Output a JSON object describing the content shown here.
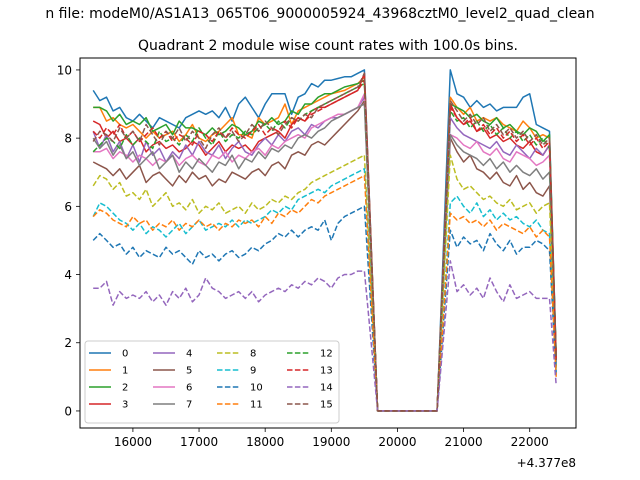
{
  "figure_title": "n file: modeM0/AS1A13_065T06_9000005924_43968cztM0_level2_quad_clean",
  "chart_data": {
    "type": "line",
    "title": "Quadrant 2 module wise count rates with 100.0s bins.",
    "xlabel": "",
    "ylabel": "",
    "x_offset_label": "+4.377e8",
    "xlim": [
      15200,
      22700
    ],
    "ylim": [
      -0.5,
      10.35
    ],
    "x_ticks": [
      16000,
      17000,
      18000,
      19000,
      20000,
      21000,
      22000
    ],
    "y_ticks": [
      0,
      2,
      4,
      6,
      8,
      10
    ],
    "grid": false,
    "legend_position": "lower-left",
    "legend_columns": 4,
    "segments": [
      {
        "x_start": 15400,
        "x_end": 19500,
        "step": 100
      },
      {
        "x_start": 19700,
        "x_end": 20600,
        "step": 100
      },
      {
        "x_start": 20800,
        "x_end": 22400,
        "step": 100
      }
    ],
    "series": [
      {
        "name": "0",
        "color": "#1f77b4",
        "dash": "solid",
        "seg1": [
          9.4,
          9.1,
          9.2,
          8.8,
          8.9,
          8.6,
          8.5,
          8.7,
          8.5,
          8.3,
          8.6,
          8.5,
          8.4,
          8.3,
          8.6,
          8.7,
          8.8,
          8.7,
          8.8,
          8.6,
          8.9,
          8.5,
          9.0,
          9.2,
          8.9,
          8.6,
          9.0,
          9.3,
          9.3,
          9.3,
          8.7,
          9.2,
          9.3,
          9.6,
          9.5,
          9.7,
          9.7,
          9.75,
          9.8,
          9.8,
          9.9,
          10.0
        ],
        "seg3": [
          10.0,
          9.3,
          9.2,
          8.9,
          9.1,
          8.9,
          9.0,
          8.8,
          8.9,
          8.9,
          8.9,
          9.2,
          9.3,
          8.4,
          8.3,
          8.2,
          1.6
        ]
      },
      {
        "name": "1",
        "color": "#ff7f0e",
        "dash": "solid",
        "seg1": [
          8.9,
          8.9,
          8.5,
          8.6,
          8.4,
          8.3,
          8.4,
          8.2,
          8.0,
          8.2,
          8.0,
          8.1,
          8.2,
          7.9,
          8.1,
          8.4,
          8.0,
          7.9,
          8.1,
          8.2,
          8.4,
          8.6,
          8.1,
          8.1,
          8.0,
          8.6,
          8.4,
          8.5,
          8.6,
          9.0,
          8.4,
          8.8,
          8.9,
          9.0,
          9.1,
          9.2,
          9.3,
          9.35,
          9.4,
          9.5,
          9.6,
          9.8
        ],
        "seg3": [
          9.2,
          8.9,
          8.7,
          8.9,
          8.5,
          8.6,
          8.5,
          8.6,
          8.4,
          8.3,
          8.2,
          8.5,
          8.3,
          8.0,
          8.1,
          8.0,
          1.5
        ]
      },
      {
        "name": "2",
        "color": "#2ca02c",
        "dash": "solid",
        "seg1": [
          8.9,
          8.9,
          8.8,
          8.5,
          8.7,
          8.4,
          8.5,
          8.4,
          8.6,
          8.2,
          8.3,
          8.4,
          8.1,
          8.5,
          8.3,
          8.3,
          8.2,
          8.1,
          8.3,
          8.1,
          8.2,
          8.4,
          8.3,
          8.1,
          8.2,
          8.5,
          8.4,
          8.6,
          8.4,
          8.5,
          8.8,
          8.7,
          9.0,
          9.0,
          9.2,
          9.3,
          9.3,
          9.4,
          9.5,
          9.55,
          9.6,
          9.7
        ],
        "seg3": [
          9.0,
          8.9,
          8.8,
          8.6,
          8.7,
          8.5,
          8.4,
          8.6,
          8.3,
          8.4,
          8.2,
          8.1,
          8.3,
          8.2,
          7.9,
          8.1,
          1.6
        ]
      },
      {
        "name": "3",
        "color": "#d62728",
        "dash": "solid",
        "seg1": [
          8.5,
          8.4,
          8.0,
          8.2,
          7.9,
          8.0,
          7.8,
          8.0,
          7.6,
          7.8,
          7.9,
          7.7,
          7.8,
          7.6,
          7.7,
          7.9,
          7.8,
          7.5,
          7.7,
          7.9,
          7.6,
          7.8,
          7.7,
          7.8,
          7.6,
          7.9,
          8.0,
          8.1,
          8.2,
          8.0,
          8.4,
          8.6,
          8.5,
          8.8,
          8.9,
          8.9,
          9.0,
          9.1,
          9.2,
          9.3,
          9.4,
          9.9
        ],
        "seg3": [
          9.0,
          8.6,
          8.4,
          8.5,
          8.2,
          8.3,
          8.0,
          8.1,
          7.9,
          8.0,
          7.8,
          7.7,
          7.9,
          7.6,
          7.5,
          7.8,
          1.5
        ]
      },
      {
        "name": "4",
        "color": "#9467bd",
        "dash": "solid",
        "seg1": [
          8.2,
          7.7,
          8.1,
          7.6,
          7.9,
          7.4,
          7.8,
          7.3,
          7.9,
          7.5,
          7.7,
          7.3,
          7.6,
          7.4,
          7.8,
          7.5,
          7.9,
          7.6,
          7.5,
          7.8,
          7.4,
          7.7,
          7.9,
          7.6,
          7.5,
          7.8,
          8.0,
          7.8,
          8.1,
          7.9,
          8.2,
          8.3,
          8.1,
          8.4,
          8.3,
          8.5,
          8.6,
          8.6,
          8.7,
          8.8,
          8.9,
          9.2
        ],
        "seg3": [
          8.6,
          8.3,
          8.1,
          8.0,
          7.9,
          7.8,
          7.7,
          7.9,
          7.6,
          7.5,
          7.8,
          7.6,
          7.4,
          7.7,
          7.5,
          7.8,
          1.4
        ]
      },
      {
        "name": "5",
        "color": "#8c564b",
        "dash": "solid",
        "seg1": [
          7.3,
          7.2,
          7.1,
          6.9,
          7.1,
          6.8,
          7.0,
          7.2,
          6.7,
          6.9,
          7.0,
          6.8,
          6.6,
          6.9,
          6.7,
          7.0,
          6.8,
          6.9,
          6.6,
          6.8,
          6.7,
          7.0,
          6.9,
          6.8,
          7.0,
          7.1,
          6.9,
          7.2,
          7.3,
          7.1,
          7.5,
          7.6,
          7.5,
          7.8,
          7.9,
          7.8,
          8.0,
          8.2,
          8.4,
          8.6,
          8.8,
          9.1
        ],
        "seg3": [
          8.0,
          7.6,
          7.3,
          7.5,
          7.1,
          7.0,
          6.8,
          7.0,
          6.7,
          6.6,
          6.9,
          6.5,
          6.7,
          6.4,
          6.3,
          6.6,
          1.3
        ]
      },
      {
        "name": "6",
        "color": "#e377c2",
        "dash": "solid",
        "seg1": [
          7.6,
          7.6,
          7.7,
          7.4,
          7.6,
          7.5,
          7.3,
          7.5,
          7.4,
          7.2,
          7.4,
          7.3,
          7.5,
          7.2,
          7.4,
          7.5,
          7.3,
          7.2,
          7.5,
          7.4,
          7.6,
          7.3,
          7.5,
          7.4,
          7.6,
          7.7,
          7.5,
          7.8,
          7.7,
          7.9,
          8.0,
          8.1,
          8.0,
          8.3,
          8.4,
          8.5,
          8.6,
          8.7,
          8.7,
          8.8,
          8.9,
          9.3
        ],
        "seg3": [
          8.1,
          8.0,
          7.8,
          7.7,
          7.9,
          7.6,
          7.5,
          7.7,
          7.4,
          7.3,
          7.6,
          7.5,
          7.4,
          7.2,
          7.3,
          7.5,
          1.4
        ]
      },
      {
        "name": "7",
        "color": "#7f7f7f",
        "dash": "solid",
        "seg1": [
          8.0,
          7.7,
          7.9,
          7.5,
          7.8,
          7.4,
          7.6,
          7.2,
          7.4,
          7.6,
          7.1,
          7.3,
          7.5,
          7.0,
          7.3,
          7.1,
          7.4,
          7.2,
          7.0,
          7.3,
          7.2,
          7.5,
          7.1,
          7.4,
          7.3,
          7.6,
          7.4,
          7.7,
          7.6,
          7.8,
          7.7,
          8.0,
          8.1,
          8.0,
          8.2,
          8.3,
          8.5,
          8.6,
          8.7,
          8.8,
          8.9,
          9.0
        ],
        "seg3": [
          8.1,
          7.8,
          7.6,
          7.5,
          7.4,
          7.2,
          7.4,
          7.1,
          7.3,
          7.0,
          7.2,
          7.0,
          6.9,
          7.1,
          6.8,
          7.0,
          1.4
        ]
      },
      {
        "name": "8",
        "color": "#bcbd22",
        "dash": "dashed",
        "seg1": [
          6.6,
          6.9,
          6.8,
          6.5,
          6.7,
          6.3,
          6.4,
          6.2,
          6.5,
          6.0,
          6.2,
          6.4,
          6.0,
          6.1,
          5.9,
          6.2,
          5.8,
          6.0,
          5.9,
          6.1,
          5.8,
          5.9,
          6.0,
          5.8,
          6.1,
          5.9,
          6.0,
          6.2,
          6.1,
          6.3,
          6.2,
          6.4,
          6.5,
          6.7,
          6.8,
          6.9,
          7.0,
          7.1,
          7.2,
          7.3,
          7.4,
          7.5
        ],
        "seg3": [
          7.5,
          6.8,
          6.5,
          6.6,
          6.4,
          6.2,
          6.3,
          6.1,
          6.0,
          6.2,
          5.9,
          6.0,
          6.1,
          5.8,
          6.0,
          6.1,
          1.2
        ]
      },
      {
        "name": "9",
        "color": "#17becf",
        "dash": "dashed",
        "seg1": [
          5.7,
          6.1,
          6.0,
          5.8,
          5.6,
          5.5,
          5.3,
          5.5,
          5.2,
          5.4,
          5.3,
          5.1,
          5.3,
          5.5,
          5.2,
          5.4,
          5.6,
          5.3,
          5.4,
          5.5,
          5.4,
          5.6,
          5.4,
          5.6,
          5.5,
          5.6,
          5.7,
          5.9,
          5.8,
          6.0,
          5.9,
          6.2,
          6.3,
          6.4,
          6.5,
          6.4,
          6.6,
          6.7,
          6.8,
          6.9,
          7.0,
          7.1
        ],
        "seg3": [
          6.1,
          6.3,
          6.0,
          5.8,
          6.1,
          5.7,
          5.9,
          5.6,
          5.8,
          5.6,
          5.7,
          5.5,
          5.4,
          5.6,
          5.3,
          5.2,
          1.1
        ]
      },
      {
        "name": "10",
        "color": "#1f77b4",
        "dash": "dashed",
        "seg1": [
          5.0,
          5.2,
          5.0,
          4.8,
          4.9,
          4.6,
          4.8,
          4.5,
          4.7,
          4.6,
          4.5,
          4.8,
          4.6,
          4.7,
          4.5,
          4.3,
          4.7,
          4.5,
          4.6,
          4.4,
          4.6,
          4.7,
          4.5,
          4.6,
          4.8,
          4.7,
          4.9,
          5.0,
          5.2,
          5.1,
          5.3,
          5.1,
          5.3,
          5.4,
          5.3,
          5.6,
          5.0,
          5.5,
          5.7,
          5.8,
          5.9,
          6.0
        ],
        "seg3": [
          5.3,
          4.8,
          5.1,
          4.9,
          5.0,
          4.7,
          5.2,
          4.9,
          4.7,
          5.0,
          4.6,
          4.8,
          4.8,
          5.0,
          4.9,
          4.7,
          1.0
        ]
      },
      {
        "name": "11",
        "color": "#ff7f0e",
        "dash": "dashed",
        "seg1": [
          5.7,
          5.9,
          5.8,
          5.6,
          5.5,
          5.4,
          5.7,
          5.5,
          5.6,
          5.3,
          5.5,
          5.4,
          5.6,
          5.3,
          5.5,
          5.4,
          5.6,
          5.4,
          5.5,
          5.3,
          5.5,
          5.4,
          5.6,
          5.5,
          5.6,
          5.4,
          5.7,
          5.5,
          5.8,
          5.7,
          5.9,
          5.8,
          6.0,
          6.2,
          6.1,
          6.3,
          6.4,
          6.5,
          6.6,
          6.7,
          6.8,
          6.9
        ],
        "seg3": [
          5.8,
          5.6,
          5.7,
          5.5,
          5.6,
          5.4,
          5.6,
          5.3,
          5.5,
          5.4,
          5.3,
          5.2,
          5.4,
          5.1,
          5.3,
          5.1,
          1.0
        ]
      },
      {
        "name": "12",
        "color": "#2ca02c",
        "dash": "dashed",
        "seg1": [
          7.6,
          7.8,
          8.0,
          7.9,
          7.7,
          8.1,
          7.8,
          8.0,
          7.9,
          7.7,
          8.2,
          7.9,
          8.0,
          7.8,
          8.1,
          7.9,
          8.3,
          8.0,
          7.8,
          8.2,
          7.9,
          8.1,
          8.0,
          8.2,
          8.1,
          8.3,
          8.4,
          8.2,
          8.5,
          8.3,
          8.6,
          8.5,
          8.7,
          8.8,
          8.9,
          9.0,
          9.1,
          9.2,
          9.3,
          9.4,
          9.5,
          9.6
        ],
        "seg3": [
          8.8,
          8.5,
          8.6,
          8.3,
          8.5,
          8.2,
          8.4,
          8.1,
          8.3,
          8.0,
          8.2,
          7.9,
          8.1,
          7.8,
          8.0,
          7.7,
          1.5
        ]
      },
      {
        "name": "13",
        "color": "#d62728",
        "dash": "dashed",
        "seg1": [
          8.2,
          8.0,
          8.3,
          8.1,
          8.4,
          8.0,
          8.2,
          7.9,
          8.1,
          8.3,
          8.0,
          8.2,
          7.9,
          8.1,
          8.0,
          7.8,
          8.2,
          8.1,
          7.9,
          8.2,
          8.0,
          8.3,
          8.1,
          8.0,
          8.2,
          8.4,
          8.1,
          8.3,
          8.2,
          8.5,
          8.3,
          8.6,
          8.5,
          8.7,
          8.8,
          8.9,
          9.0,
          9.1,
          9.2,
          9.3,
          9.4,
          9.7
        ],
        "seg3": [
          8.9,
          8.6,
          8.4,
          8.6,
          8.2,
          8.4,
          8.1,
          8.3,
          8.0,
          8.2,
          7.9,
          8.1,
          7.8,
          8.0,
          7.7,
          7.9,
          1.5
        ]
      },
      {
        "name": "14",
        "color": "#9467bd",
        "dash": "dashed",
        "seg1": [
          3.6,
          3.6,
          3.8,
          3.1,
          3.5,
          3.3,
          3.4,
          3.3,
          3.5,
          3.2,
          3.4,
          3.1,
          3.5,
          3.3,
          3.6,
          3.2,
          3.4,
          3.9,
          3.6,
          3.5,
          3.3,
          3.4,
          3.5,
          3.3,
          3.5,
          3.2,
          3.4,
          3.5,
          3.6,
          3.5,
          3.7,
          3.6,
          3.8,
          3.7,
          3.9,
          3.8,
          3.6,
          3.9,
          4.0,
          4.0,
          4.1,
          4.1
        ],
        "seg3": [
          4.4,
          3.5,
          3.7,
          3.4,
          3.6,
          3.3,
          3.9,
          3.5,
          3.2,
          3.7,
          3.3,
          3.4,
          3.5,
          3.3,
          3.3,
          3.3,
          0.75
        ]
      },
      {
        "name": "15",
        "color": "#8c564b",
        "dash": "dashed",
        "seg1": [
          7.9,
          8.2,
          8.1,
          7.9,
          8.3,
          8.0,
          8.2,
          7.9,
          8.4,
          8.1,
          7.8,
          8.2,
          8.0,
          8.3,
          7.9,
          8.2,
          8.0,
          7.7,
          8.1,
          8.3,
          8.0,
          8.2,
          7.9,
          8.1,
          8.4,
          8.2,
          8.5,
          8.3,
          8.1,
          8.4,
          8.6,
          8.5,
          8.7,
          8.6,
          8.9,
          9.0,
          9.1,
          9.2,
          9.3,
          9.4,
          9.5,
          9.9
        ],
        "seg3": [
          9.1,
          8.8,
          8.5,
          8.7,
          8.4,
          8.6,
          8.2,
          8.4,
          8.1,
          8.3,
          8.0,
          8.2,
          7.9,
          8.1,
          7.8,
          8.0,
          1.5
        ]
      }
    ]
  }
}
